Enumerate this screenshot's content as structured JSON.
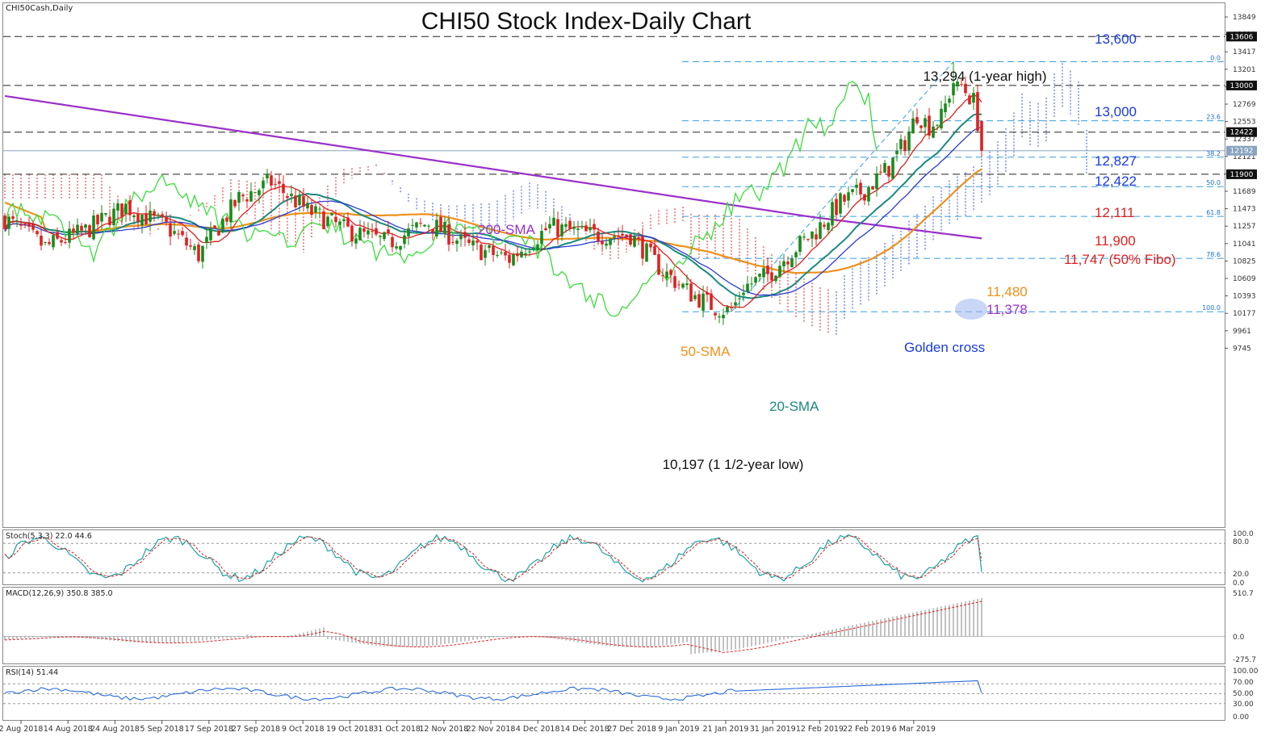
{
  "header": {
    "title": "CHI50 Stock Index-Daily Chart",
    "symbol": "CHI50Cash,Daily"
  },
  "chart_data": {
    "type": "candlestick",
    "title": "CHI50 Stock Index-Daily Chart",
    "ylim": [
      9620,
      13950
    ],
    "y_ticks": [
      13849,
      13633,
      13417,
      13201,
      12985,
      12769,
      12553,
      12337,
      12121,
      11905,
      11689,
      11473,
      11257,
      11041,
      10825,
      10609,
      10393,
      10177,
      9961,
      9745
    ],
    "price_boxes": [
      {
        "label": "13606",
        "value": 13606
      },
      {
        "label": "13000",
        "value": 13000
      },
      {
        "label": "12422",
        "value": 12422
      },
      {
        "label": "12192",
        "value": 12192
      },
      {
        "label": "11900",
        "value": 11900
      }
    ],
    "x_labels": [
      "2 Aug 2018",
      "14 Aug 2018",
      "24 Aug 2018",
      "5 Sep 2018",
      "17 Sep 2018",
      "27 Sep 2018",
      "9 Oct 2018",
      "19 Oct 2018",
      "31 Oct 2018",
      "12 Nov 2018",
      "22 Nov 2018",
      "4 Dec 2018",
      "14 Dec 2018",
      "27 Dec 2018",
      "9 Jan 2019",
      "21 Jan 2019",
      "31 Jan 2019",
      "12 Feb 2019",
      "22 Feb 2019",
      "6 Mar 2019"
    ],
    "candle_anchors": [
      [
        0,
        11350
      ],
      [
        10,
        11000
      ],
      [
        20,
        11200
      ],
      [
        30,
        11500
      ],
      [
        40,
        11250
      ],
      [
        48,
        10900
      ],
      [
        58,
        11600
      ],
      [
        66,
        11800
      ],
      [
        75,
        11450
      ],
      [
        85,
        11200
      ],
      [
        95,
        11050
      ],
      [
        105,
        11300
      ],
      [
        115,
        11000
      ],
      [
        125,
        10850
      ],
      [
        135,
        11250
      ],
      [
        145,
        11150
      ],
      [
        155,
        11150
      ],
      [
        163,
        10700
      ],
      [
        170,
        10420
      ],
      [
        176,
        10250
      ],
      [
        180,
        10200
      ],
      [
        183,
        10500
      ],
      [
        189,
        10650
      ],
      [
        195,
        10950
      ],
      [
        201,
        11200
      ],
      [
        207,
        11550
      ],
      [
        213,
        11700
      ],
      [
        219,
        11980
      ],
      [
        223,
        12300
      ],
      [
        226,
        12650
      ],
      [
        229,
        12500
      ],
      [
        232,
        12600
      ],
      [
        235,
        13050
      ],
      [
        237,
        13000
      ],
      [
        240,
        12800
      ],
      [
        241,
        12550
      ],
      [
        242,
        12200
      ]
    ],
    "horizontal_levels": [
      {
        "label": "13,600",
        "value": 13606,
        "style": "black-dashed"
      },
      {
        "label": "13,000",
        "value": 13000,
        "style": "black-dashed"
      },
      {
        "label": "12,422",
        "value": 12422,
        "style": "black-dashed"
      },
      {
        "label": "11,900",
        "value": 11900,
        "style": "black-dashed"
      }
    ],
    "fibonacci": {
      "high": 13294,
      "low": 10197,
      "levels": [
        {
          "ratio": "0.0",
          "value": 13294
        },
        {
          "ratio": "23.6",
          "value": 12563
        },
        {
          "ratio": "38.2",
          "value": 12111
        },
        {
          "ratio": "50.0",
          "value": 11747
        },
        {
          "ratio": "61.8",
          "value": 11378
        },
        {
          "ratio": "78.6",
          "value": 10858
        },
        {
          "ratio": "100.0",
          "value": 10197
        }
      ]
    },
    "annotations": {
      "high": "13,294 (1-year high)",
      "low": "10,197 (1 1/2-year low)",
      "level_13600": "13,600",
      "level_13000": "13,000",
      "level_12827": "12,827",
      "level_12422": "12,422",
      "level_12111": "12,111",
      "level_11900": "11,900",
      "level_11747": "11,747 (50% Fibo)",
      "level_11480": "11,480",
      "level_11378": "11,378",
      "sma200": "200-SMA",
      "sma50": "50-SMA",
      "sma20": "20-SMA",
      "golden_cross": "Golden cross"
    },
    "colors": {
      "bull": "#1a8a1a",
      "bear": "#e02020",
      "sma200": "#9b30c8",
      "sma50": "#f0901a",
      "sma20": "#1a8a80",
      "tenkan": "#e02020",
      "kijun": "#2a3ad0",
      "chikou": "#3adc3a",
      "fib": "#33a0e0",
      "annotation_blue": "#1a3ae0",
      "annotation_red": "#e02020"
    },
    "indicators": {
      "stoch": {
        "label": "Stoch(5,3,3) 22.0 44.6",
        "ticks": [
          "100.0",
          "80.0",
          "20.0",
          "0.0"
        ],
        "ylim": [
          0,
          100
        ]
      },
      "macd": {
        "label": "MACD(12,26,9) 350.8 385.0",
        "ticks": [
          "510.7",
          "0.0",
          "-275.7"
        ],
        "ylim": [
          -275.7,
          510.7
        ]
      },
      "rsi": {
        "label": "RSI(14) 51.44",
        "ticks": [
          "100.00",
          "70.00",
          "50.00",
          "30.00",
          "0.00"
        ],
        "ylim": [
          0,
          100
        ]
      }
    }
  }
}
